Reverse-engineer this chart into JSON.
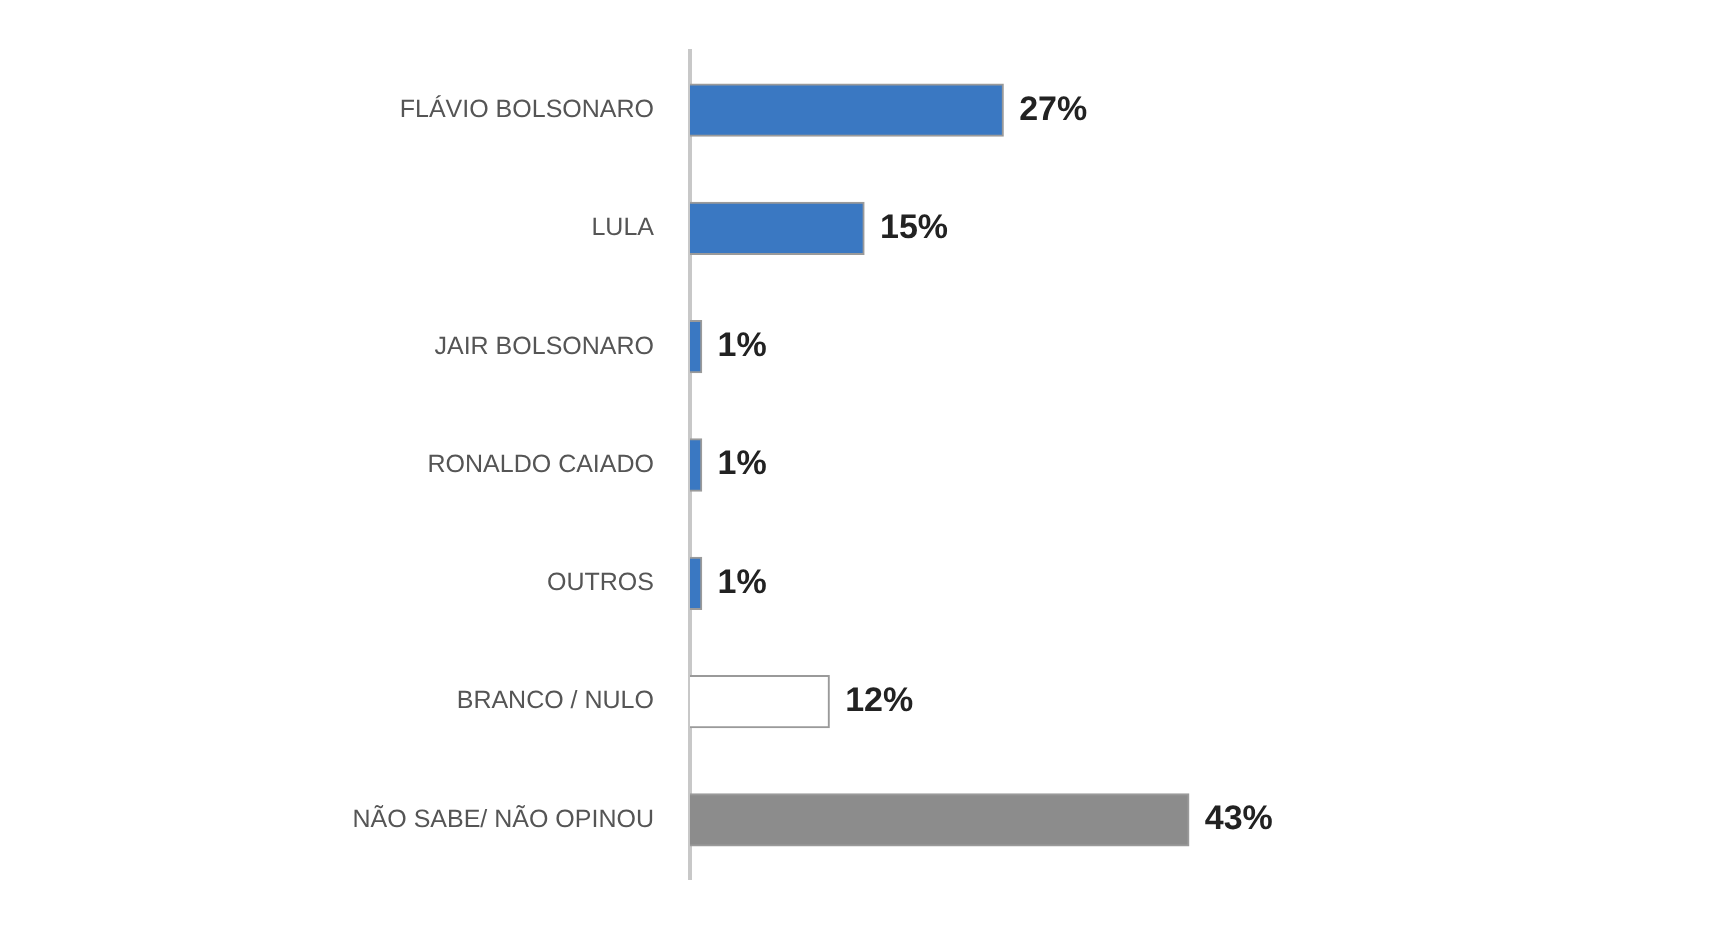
{
  "chart_data": {
    "type": "bar",
    "orientation": "horizontal",
    "categories": [
      "FLÁVIO BOLSONARO",
      "LULA",
      "JAIR BOLSONARO",
      "RONALDO CAIADO",
      "OUTROS",
      "BRANCO / NULO",
      "NÃO SABE/ NÃO OPINOU"
    ],
    "values": [
      27,
      15,
      1,
      1,
      1,
      12,
      43
    ],
    "colors": [
      "#3a78c2",
      "#3a78c2",
      "#3a78c2",
      "#3a78c2",
      "#3a78c2",
      "#ffffff",
      "#8c8c8c"
    ],
    "value_labels": [
      "27%",
      "15%",
      "1%",
      "1%",
      "1%",
      "12%",
      "43%"
    ],
    "tick_labels": "y"
  }
}
